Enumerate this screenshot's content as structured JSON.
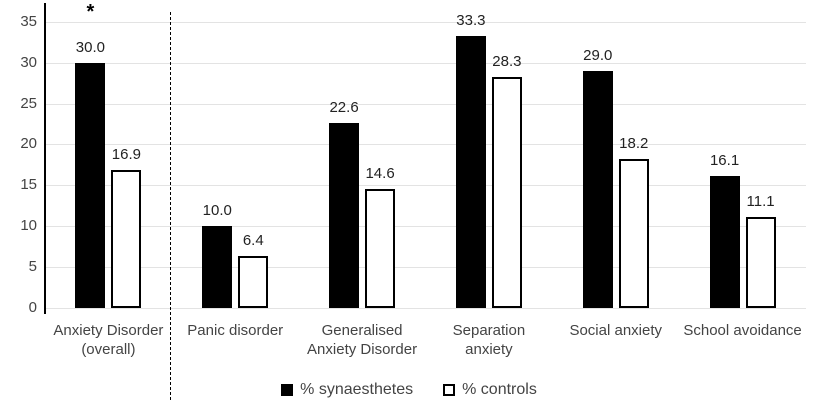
{
  "chart_data": {
    "type": "bar",
    "title": "",
    "xlabel": "",
    "ylabel": "",
    "categories": [
      "Anxiety Disorder (overall)",
      "Panic disorder",
      "Generalised Anxiety Disorder",
      "Separation anxiety",
      "Social anxiety",
      "School avoidance"
    ],
    "category_display": [
      "Anxiety Disorder\n(overall)",
      "Panic disorder",
      "Generalised\nAnxiety Disorder",
      "Separation\nanxiety",
      "Social anxiety",
      "School avoidance"
    ],
    "series": [
      {
        "name": "% synaesthetes",
        "fill": "#000000",
        "border": "#000000",
        "values": [
          30.0,
          10.0,
          22.6,
          33.3,
          29.0,
          16.1
        ]
      },
      {
        "name": "% controls",
        "fill": "#ffffff",
        "border": "#000000",
        "values": [
          16.9,
          6.4,
          14.6,
          28.3,
          18.2,
          11.1
        ]
      }
    ],
    "data_label_decimals": 1,
    "yticks": [
      0,
      5,
      10,
      15,
      20,
      25,
      30,
      35
    ],
    "ylim": [
      0,
      37.3
    ],
    "grid": true,
    "legend_position": "bottom",
    "annotations": [
      {
        "text": "*",
        "category_index": 0,
        "series_index": 0
      }
    ],
    "separator_after_category_index": 0
  },
  "colors": {
    "gridline": "#e3e3e3",
    "axis_line": "#000000",
    "tick_label": "#444444",
    "category_label": "#444444",
    "data_label": "#222222",
    "background": "#ffffff"
  }
}
